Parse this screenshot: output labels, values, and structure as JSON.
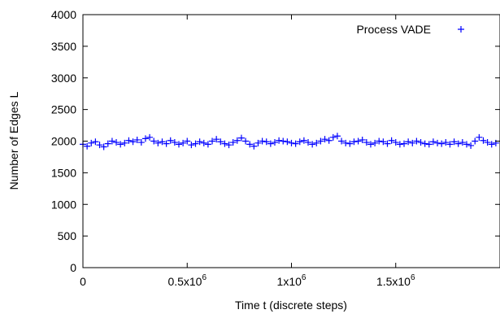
{
  "chart_data": {
    "type": "scatter",
    "title": "",
    "xlabel": "Time t (discrete steps)",
    "ylabel": "Number of Edges L",
    "xlim": [
      0,
      2000000
    ],
    "ylim": [
      0,
      4000
    ],
    "grid": false,
    "legend_position": "top-right",
    "marker": "+",
    "color": "#0000ff",
    "x_ticks": [
      {
        "value": 0,
        "label": "0",
        "exp": ""
      },
      {
        "value": 500000,
        "label": "0.5x10",
        "exp": "6"
      },
      {
        "value": 1000000,
        "label": "1x10",
        "exp": "6"
      },
      {
        "value": 1500000,
        "label": "1.5x10",
        "exp": "6"
      }
    ],
    "y_ticks": [
      {
        "value": 0,
        "label": "0"
      },
      {
        "value": 500,
        "label": "500"
      },
      {
        "value": 1000,
        "label": "1000"
      },
      {
        "value": 1500,
        "label": "1500"
      },
      {
        "value": 2000,
        "label": "2000"
      },
      {
        "value": 2500,
        "label": "2500"
      },
      {
        "value": 3000,
        "label": "3000"
      },
      {
        "value": 3500,
        "label": "3500"
      },
      {
        "value": 4000,
        "label": "4000"
      }
    ],
    "series": [
      {
        "name": "Process VADE",
        "x": [
          0,
          20000,
          40000,
          60000,
          80000,
          100000,
          120000,
          140000,
          160000,
          180000,
          200000,
          220000,
          240000,
          260000,
          280000,
          300000,
          320000,
          340000,
          360000,
          380000,
          400000,
          420000,
          440000,
          460000,
          480000,
          500000,
          520000,
          540000,
          560000,
          580000,
          600000,
          620000,
          640000,
          660000,
          680000,
          700000,
          720000,
          740000,
          760000,
          780000,
          800000,
          820000,
          840000,
          860000,
          880000,
          900000,
          920000,
          940000,
          960000,
          980000,
          1000000,
          1020000,
          1040000,
          1060000,
          1080000,
          1100000,
          1120000,
          1140000,
          1160000,
          1180000,
          1200000,
          1220000,
          1240000,
          1260000,
          1280000,
          1300000,
          1320000,
          1340000,
          1360000,
          1380000,
          1400000,
          1420000,
          1440000,
          1460000,
          1480000,
          1500000,
          1520000,
          1540000,
          1560000,
          1580000,
          1600000,
          1620000,
          1640000,
          1660000,
          1680000,
          1700000,
          1720000,
          1740000,
          1760000,
          1780000,
          1800000,
          1820000,
          1840000,
          1860000,
          1880000,
          1900000,
          1920000,
          1940000,
          1960000,
          1980000
        ],
        "y": [
          1950,
          1920,
          1970,
          1990,
          1940,
          1910,
          1960,
          2000,
          1980,
          1950,
          1970,
          2010,
          1990,
          2020,
          1980,
          2040,
          2060,
          2000,
          1970,
          1990,
          1960,
          2010,
          1980,
          1950,
          1970,
          2000,
          1940,
          1960,
          1990,
          1970,
          1950,
          2000,
          2030,
          1990,
          1960,
          1940,
          1980,
          2010,
          2050,
          2000,
          1950,
          1920,
          1970,
          2000,
          1990,
          1960,
          1980,
          2010,
          2000,
          1990,
          1970,
          1960,
          1990,
          2010,
          1980,
          1950,
          1970,
          2000,
          2030,
          2010,
          2060,
          2080,
          2000,
          1970,
          1960,
          1990,
          2000,
          2020,
          1980,
          1950,
          1970,
          2000,
          1990,
          1960,
          2010,
          1980,
          1950,
          1960,
          1990,
          1970,
          2000,
          1980,
          1960,
          1950,
          1990,
          1970,
          1960,
          1980,
          1950,
          1990,
          1960,
          1980,
          1950,
          1930,
          2000,
          2060,
          2010,
          1980,
          1950,
          1970
        ]
      }
    ]
  }
}
